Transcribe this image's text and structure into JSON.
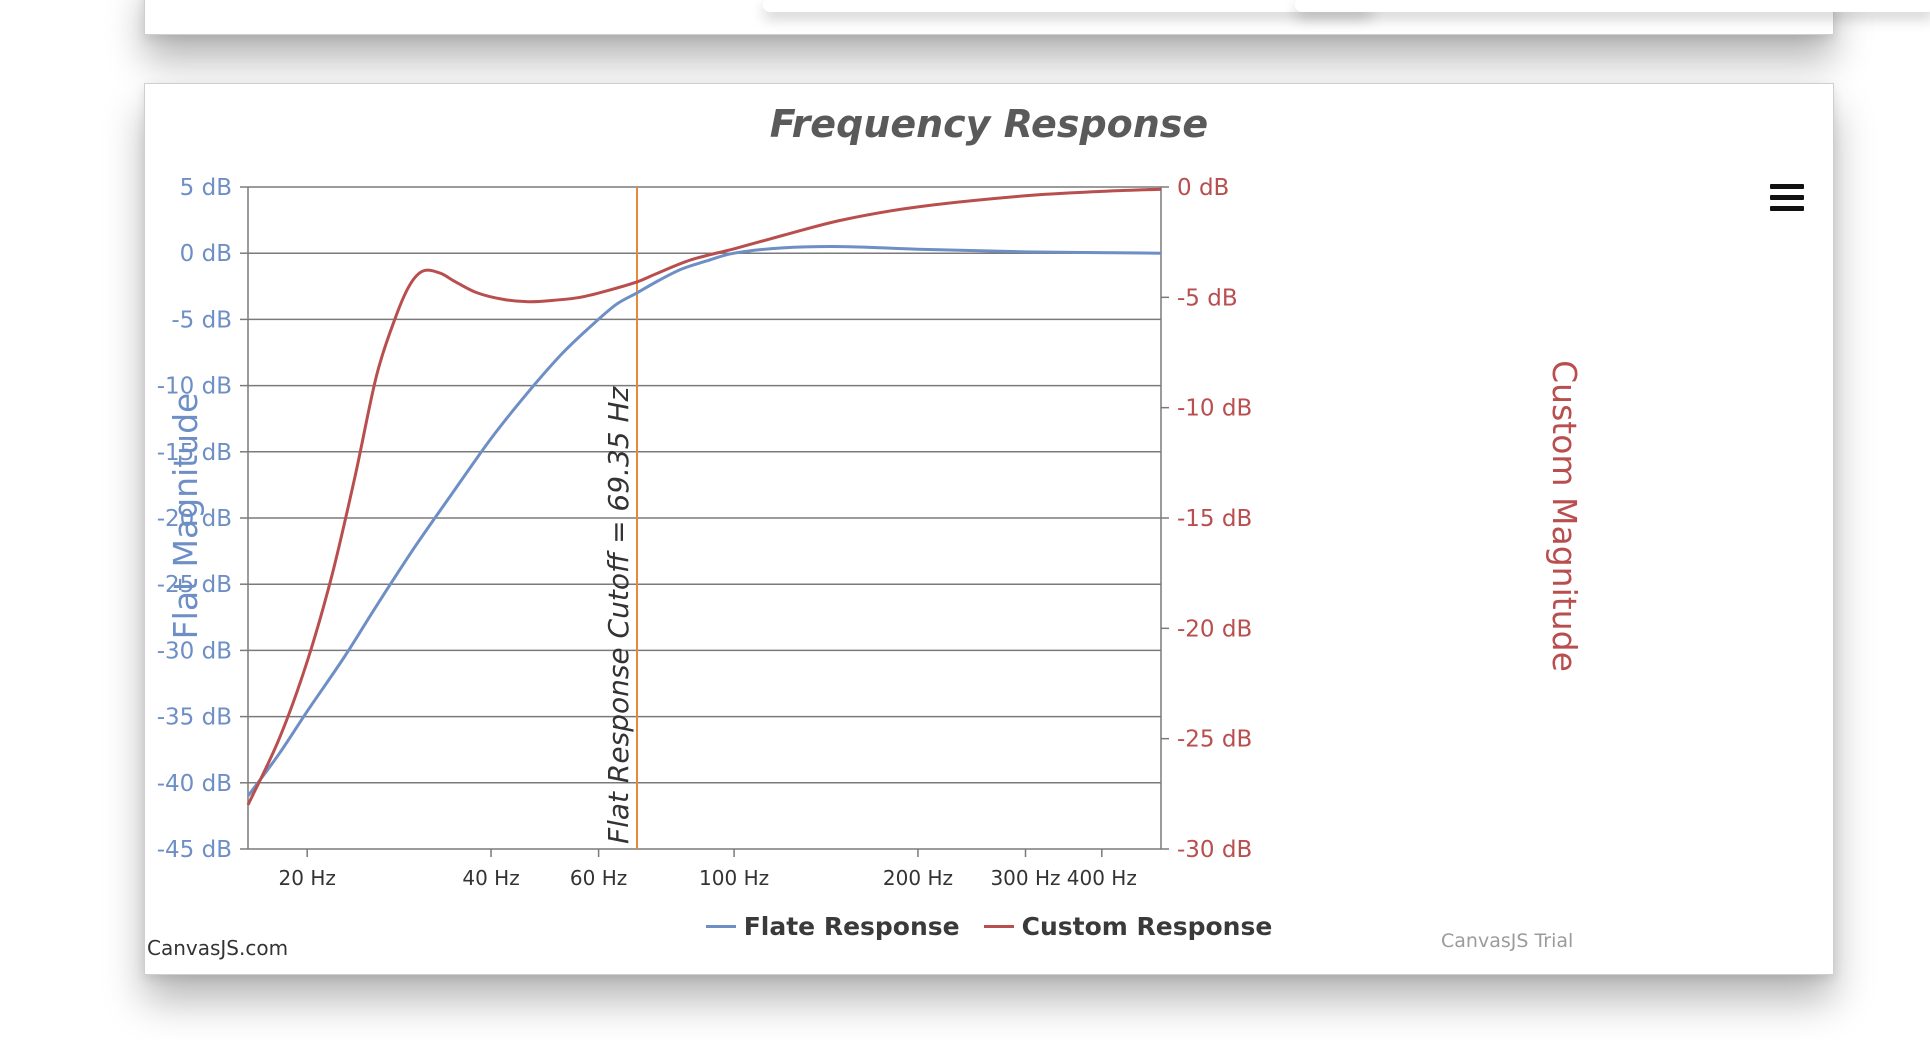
{
  "credit": "CanvasJS.com",
  "trial": "CanvasJS Trial",
  "icons": {
    "menu": "hamburger-menu-icon"
  },
  "colors": {
    "primary": "#6D8FC5",
    "secondary": "#B94E4E",
    "stripline": "#E8893A",
    "grid": "#7a7a7a"
  },
  "chart_data": {
    "type": "line",
    "title": "Frequency Response",
    "x_axis": {
      "scale": "log",
      "range_hz": [
        16,
        500
      ],
      "tick_values": [
        20,
        40,
        60,
        100,
        200,
        300,
        400
      ],
      "tick_labels": [
        "20 Hz",
        "40 Hz",
        "60 Hz",
        "100 Hz",
        "200 Hz",
        "300 Hz",
        "400 Hz"
      ]
    },
    "y_axis_left": {
      "label": "Flat Magnitude",
      "range_db": [
        -45,
        5
      ],
      "tick_values": [
        5,
        0,
        -5,
        -10,
        -15,
        -20,
        -25,
        -30,
        -35,
        -40,
        -45
      ],
      "tick_labels": [
        "5 dB",
        "0 dB",
        "-5 dB",
        "-10 dB",
        "-15 dB",
        "-20 dB",
        "-25 dB",
        "-30 dB",
        "-35 dB",
        "-40 dB",
        "-45 dB"
      ]
    },
    "y_axis_right": {
      "label": "Custom Magnitude",
      "range_db": [
        -30,
        0
      ],
      "tick_values": [
        0,
        -5,
        -10,
        -15,
        -20,
        -25,
        -30
      ],
      "tick_labels": [
        "0 dB",
        "-5 dB",
        "-10 dB",
        "-15 dB",
        "-20 dB",
        "-25 dB",
        "-30 dB"
      ]
    },
    "grid": true,
    "legend_position": "bottom-center",
    "strip_line": {
      "x_hz": 69.35,
      "label": "Flat Response Cutoff = 69.35 Hz"
    },
    "series": [
      {
        "name": "Flate Response",
        "axis": "left",
        "color": "#6D8FC5",
        "x": [
          16,
          18,
          20,
          23,
          26,
          30,
          34,
          40,
          46,
          52,
          58,
          64,
          69.35,
          75,
          82,
          90,
          100,
          120,
          150,
          200,
          300,
          500
        ],
        "y": [
          -41,
          -37.8,
          -34.6,
          -30.5,
          -26.6,
          -22.2,
          -18.6,
          -14,
          -10.5,
          -7.7,
          -5.6,
          -3.9,
          -3,
          -2.1,
          -1.2,
          -0.6,
          0,
          0.4,
          0.5,
          0.3,
          0.1,
          0
        ]
      },
      {
        "name": "Custom Response",
        "axis": "right",
        "color": "#B94E4E",
        "x": [
          16,
          18,
          20,
          22,
          24,
          26,
          28,
          29.5,
          31,
          33,
          35,
          38,
          42,
          46,
          50,
          56,
          62,
          69.35,
          75,
          85,
          100,
          120,
          150,
          200,
          300,
          400,
          500
        ],
        "y": [
          -28,
          -25,
          -21.5,
          -17.5,
          -13,
          -8.5,
          -5.8,
          -4.4,
          -3.8,
          -3.9,
          -4.3,
          -4.8,
          -5.1,
          -5.2,
          -5.15,
          -5,
          -4.7,
          -4.3,
          -3.9,
          -3.3,
          -2.8,
          -2.2,
          -1.5,
          -0.9,
          -0.4,
          -0.2,
          -0.1
        ]
      }
    ]
  }
}
